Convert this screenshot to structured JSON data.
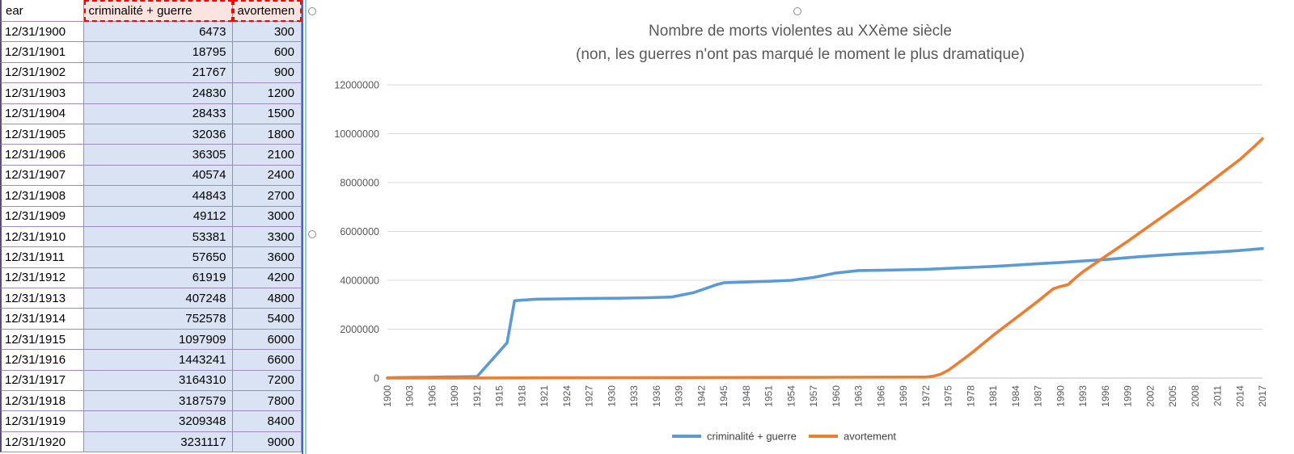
{
  "table": {
    "headers": [
      {
        "label": "ear"
      },
      {
        "label": "criminalité + guerre"
      },
      {
        "label": "avortemen"
      }
    ],
    "rows": [
      {
        "date": "12/31/1900",
        "crim": "6473",
        "avort": "300"
      },
      {
        "date": "12/31/1901",
        "crim": "18795",
        "avort": "600"
      },
      {
        "date": "12/31/1902",
        "crim": "21767",
        "avort": "900"
      },
      {
        "date": "12/31/1903",
        "crim": "24830",
        "avort": "1200"
      },
      {
        "date": "12/31/1904",
        "crim": "28433",
        "avort": "1500"
      },
      {
        "date": "12/31/1905",
        "crim": "32036",
        "avort": "1800"
      },
      {
        "date": "12/31/1906",
        "crim": "36305",
        "avort": "2100"
      },
      {
        "date": "12/31/1907",
        "crim": "40574",
        "avort": "2400"
      },
      {
        "date": "12/31/1908",
        "crim": "44843",
        "avort": "2700"
      },
      {
        "date": "12/31/1909",
        "crim": "49112",
        "avort": "3000"
      },
      {
        "date": "12/31/1910",
        "crim": "53381",
        "avort": "3300"
      },
      {
        "date": "12/31/1911",
        "crim": "57650",
        "avort": "3600"
      },
      {
        "date": "12/31/1912",
        "crim": "61919",
        "avort": "4200"
      },
      {
        "date": "12/31/1913",
        "crim": "407248",
        "avort": "4800"
      },
      {
        "date": "12/31/1914",
        "crim": "752578",
        "avort": "5400"
      },
      {
        "date": "12/31/1915",
        "crim": "1097909",
        "avort": "6000"
      },
      {
        "date": "12/31/1916",
        "crim": "1443241",
        "avort": "6600"
      },
      {
        "date": "12/31/1917",
        "crim": "3164310",
        "avort": "7200"
      },
      {
        "date": "12/31/1918",
        "crim": "3187579",
        "avort": "7800"
      },
      {
        "date": "12/31/1919",
        "crim": "3209348",
        "avort": "8400"
      },
      {
        "date": "12/31/1920",
        "crim": "3231117",
        "avort": "9000"
      }
    ]
  },
  "chart_data": {
    "type": "line",
    "title": "Nombre de morts violentes au XXème siècle",
    "subtitle": "(non, les guerres n'ont pas marqué le moment le plus dramatique)",
    "xlim": [
      1900,
      2017
    ],
    "ylim": [
      0,
      12000000
    ],
    "grid": "horizontal",
    "legend_position": "bottom",
    "y_ticks": [
      0,
      2000000,
      4000000,
      6000000,
      8000000,
      10000000,
      12000000
    ],
    "x_ticks": [
      1900,
      1903,
      1906,
      1909,
      1912,
      1915,
      1918,
      1921,
      1924,
      1927,
      1930,
      1933,
      1936,
      1939,
      1942,
      1945,
      1948,
      1951,
      1954,
      1957,
      1960,
      1963,
      1966,
      1969,
      1972,
      1975,
      1978,
      1981,
      1984,
      1987,
      1990,
      1993,
      1996,
      1999,
      2002,
      2005,
      2008,
      2011,
      2014,
      2017
    ],
    "series": [
      {
        "name": "criminalité + guerre",
        "color": "#5B9BD5",
        "points": [
          [
            1900,
            6473
          ],
          [
            1901,
            18795
          ],
          [
            1902,
            21767
          ],
          [
            1903,
            24830
          ],
          [
            1904,
            28433
          ],
          [
            1905,
            32036
          ],
          [
            1906,
            36305
          ],
          [
            1907,
            40574
          ],
          [
            1908,
            44843
          ],
          [
            1909,
            49112
          ],
          [
            1910,
            53381
          ],
          [
            1911,
            57650
          ],
          [
            1912,
            61919
          ],
          [
            1913,
            407248
          ],
          [
            1914,
            752578
          ],
          [
            1915,
            1097909
          ],
          [
            1916,
            1443241
          ],
          [
            1917,
            3164310
          ],
          [
            1918,
            3187579
          ],
          [
            1919,
            3209348
          ],
          [
            1920,
            3231117
          ],
          [
            1923,
            3240000
          ],
          [
            1926,
            3252000
          ],
          [
            1929,
            3262000
          ],
          [
            1932,
            3272000
          ],
          [
            1935,
            3290000
          ],
          [
            1938,
            3315000
          ],
          [
            1941,
            3500000
          ],
          [
            1944,
            3820000
          ],
          [
            1945,
            3900000
          ],
          [
            1948,
            3930000
          ],
          [
            1951,
            3960000
          ],
          [
            1954,
            4000000
          ],
          [
            1957,
            4120000
          ],
          [
            1960,
            4300000
          ],
          [
            1963,
            4400000
          ],
          [
            1966,
            4410000
          ],
          [
            1969,
            4430000
          ],
          [
            1972,
            4450000
          ],
          [
            1975,
            4490000
          ],
          [
            1978,
            4530000
          ],
          [
            1981,
            4570000
          ],
          [
            1984,
            4620000
          ],
          [
            1987,
            4680000
          ],
          [
            1990,
            4730000
          ],
          [
            1993,
            4790000
          ],
          [
            1996,
            4850000
          ],
          [
            1999,
            4930000
          ],
          [
            2002,
            5000000
          ],
          [
            2005,
            5060000
          ],
          [
            2008,
            5110000
          ],
          [
            2011,
            5160000
          ],
          [
            2014,
            5220000
          ],
          [
            2017,
            5300000
          ]
        ]
      },
      {
        "name": "avortement",
        "color": "#ED7D31",
        "points": [
          [
            1900,
            300
          ],
          [
            1912,
            4200
          ],
          [
            1920,
            9000
          ],
          [
            1930,
            15000
          ],
          [
            1940,
            21000
          ],
          [
            1950,
            27000
          ],
          [
            1960,
            33000
          ],
          [
            1969,
            38400
          ],
          [
            1972,
            40200
          ],
          [
            1973,
            80000
          ],
          [
            1974,
            160000
          ],
          [
            1975,
            320000
          ],
          [
            1976,
            540000
          ],
          [
            1977,
            770000
          ],
          [
            1978,
            1000000
          ],
          [
            1981,
            1750000
          ],
          [
            1984,
            2450000
          ],
          [
            1987,
            3150000
          ],
          [
            1989,
            3650000
          ],
          [
            1990,
            3750000
          ],
          [
            1991,
            3820000
          ],
          [
            1992,
            4100000
          ],
          [
            1993,
            4350000
          ],
          [
            1996,
            4980000
          ],
          [
            1999,
            5600000
          ],
          [
            2002,
            6250000
          ],
          [
            2005,
            6900000
          ],
          [
            2008,
            7550000
          ],
          [
            2011,
            8250000
          ],
          [
            2014,
            8950000
          ],
          [
            2016,
            9500000
          ],
          [
            2017,
            9800000
          ]
        ]
      }
    ]
  },
  "colors": {
    "series_blue": "#5B9BD5",
    "series_orange": "#ED7D31",
    "title_gray": "#595959",
    "gridline": "#D9D9D9",
    "axis_line": "#BFBFBF",
    "selection_fill": "#DAE3F3",
    "header_fill": "#FBE3E0",
    "copy_border_red": "#FF0000",
    "table_grid_purple": "#9E8AC0",
    "pane_divider_blue": "#2E75B6"
  }
}
